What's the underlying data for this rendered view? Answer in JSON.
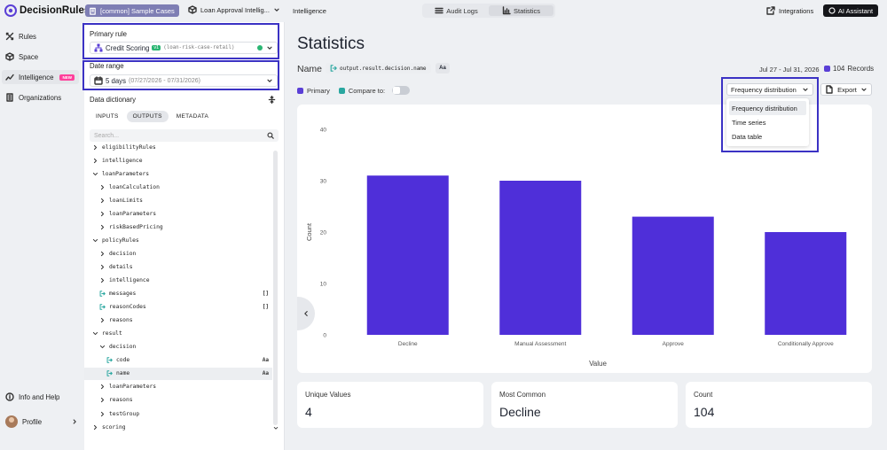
{
  "brand": {
    "name": "DecisionRules",
    "accent": "#5a3fd6"
  },
  "topbar": {
    "org": "[common] Sample Cases",
    "project": "Loan Approval Intellig...",
    "crumb": "Intelligence",
    "tabs": [
      {
        "label": "Audit Logs",
        "icon": "list-icon"
      },
      {
        "label": "Statistics",
        "icon": "chart-icon",
        "active": true
      }
    ],
    "integrations": "Integrations",
    "ai": "AI Assistant"
  },
  "nav": {
    "items": [
      {
        "label": "Rules",
        "icon": "rules-icon"
      },
      {
        "label": "Space",
        "icon": "cube-icon"
      },
      {
        "label": "Intelligence",
        "icon": "chart-icon",
        "badge": "NEW",
        "active": true
      },
      {
        "label": "Organizations",
        "icon": "building-icon"
      }
    ],
    "help": "Info and Help",
    "profile": "Profile"
  },
  "panel": {
    "primary_rule_label": "Primary rule",
    "rule_name": "Credit Scoring",
    "rule_version": "v1",
    "rule_alias": "(loan-risk-case-retail)",
    "rule_status_color": "#2bb673",
    "date_range_label": "Date range",
    "date_value": "5 days",
    "date_span": "(07/27/2026 - 07/31/2026)",
    "dict_label": "Data dictionary",
    "tabs": [
      "INPUTS",
      "OUTPUTS",
      "METADATA"
    ],
    "active_tab": "OUTPUTS",
    "search_placeholder": "Search...",
    "tree": [
      {
        "label": "eligibilityRules",
        "d": 0,
        "k": "f"
      },
      {
        "label": "intelligence",
        "d": 0,
        "k": "f"
      },
      {
        "label": "loanParameters",
        "d": 0,
        "k": "o"
      },
      {
        "label": "loanCalculation",
        "d": 1,
        "k": "f"
      },
      {
        "label": "loanLimits",
        "d": 1,
        "k": "f"
      },
      {
        "label": "loanParameters",
        "d": 1,
        "k": "f"
      },
      {
        "label": "riskBasedPricing",
        "d": 1,
        "k": "f"
      },
      {
        "label": "policyRules",
        "d": 0,
        "k": "o"
      },
      {
        "label": "decision",
        "d": 1,
        "k": "f"
      },
      {
        "label": "details",
        "d": 1,
        "k": "f"
      },
      {
        "label": "intelligence",
        "d": 1,
        "k": "f"
      },
      {
        "label": "messages",
        "d": 1,
        "k": "l",
        "tag": "[]"
      },
      {
        "label": "reasonCodes",
        "d": 1,
        "k": "l",
        "tag": "[]"
      },
      {
        "label": "reasons",
        "d": 1,
        "k": "f"
      },
      {
        "label": "result",
        "d": 0,
        "k": "o"
      },
      {
        "label": "decision",
        "d": 1,
        "k": "o"
      },
      {
        "label": "code",
        "d": 2,
        "k": "l",
        "tag": "Aa"
      },
      {
        "label": "name",
        "d": 2,
        "k": "l",
        "tag": "Aa",
        "sel": true
      },
      {
        "label": "loanParameters",
        "d": 1,
        "k": "f"
      },
      {
        "label": "reasons",
        "d": 1,
        "k": "f"
      },
      {
        "label": "testGroup",
        "d": 1,
        "k": "f"
      },
      {
        "label": "scoring",
        "d": 0,
        "k": "f"
      }
    ]
  },
  "main": {
    "title": "Statistics",
    "name_label": "Name",
    "field_path": "output.result.decision.name",
    "field_type": "Aa",
    "date_range": "Jul 27 - Jul 31, 2026",
    "records_count": "104",
    "records_label": "Records",
    "legend_primary": "Primary",
    "legend_compare": "Compare to:",
    "primary_color": "#5a3fd6",
    "compare_color": "#2aa7a0",
    "view_select": "Frequency distribution",
    "view_options": [
      "Frequency distribution",
      "Time series",
      "Data table"
    ],
    "export": "Export"
  },
  "chart_data": {
    "type": "bar",
    "categories": [
      "Decline",
      "Manual Assessment",
      "Approve",
      "Conditionally Approve"
    ],
    "values": [
      31,
      30,
      23,
      20
    ],
    "xlabel": "Value",
    "ylabel": "Count",
    "ylim": [
      0,
      40
    ],
    "yticks": [
      0,
      10,
      20,
      30,
      40
    ],
    "grid": false,
    "color": "#4f2fd9"
  },
  "stats": [
    {
      "label": "Unique Values",
      "value": "4"
    },
    {
      "label": "Most Common",
      "value": "Decline"
    },
    {
      "label": "Count",
      "value": "104"
    }
  ]
}
